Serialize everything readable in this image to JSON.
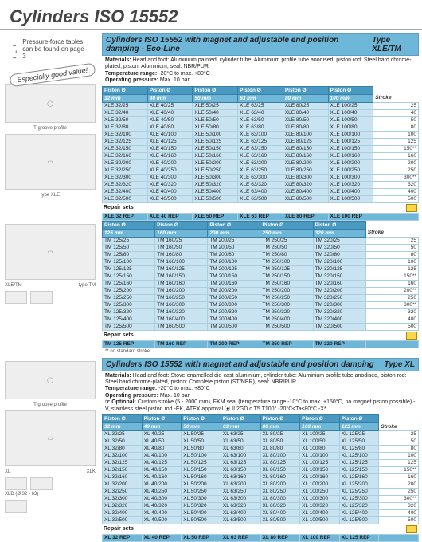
{
  "page": {
    "title": "Cylinders ISO 15552",
    "note": "Pressure-force tables can be found on page 3",
    "badge": "Especially good value!"
  },
  "section1": {
    "header_title": "Cylinders ISO 15552 with magnet and adjustable end position damping - Eco-Line",
    "header_type": "Type XLE/TM",
    "materials": "Head and foot: Aluminium painted, cylinder tube: Aluminium profile tube anodised, piston rod: Steel hard chrome-plated, piston: Aluminium, seal: NBR/PUR",
    "temp_range": "-20°C to max. +80°C",
    "op_pressure": "Max. 10 bar",
    "piston_label": "Piston Ø",
    "stroke_label": "Stroke",
    "repair_label": "Repair sets",
    "img1_cap": "T-groove profile",
    "img2_cap": "type XLE",
    "tableA": {
      "sizes": [
        "32 mm",
        "40 mm",
        "50 mm",
        "63 mm",
        "80 mm",
        "100 mm"
      ],
      "rows": [
        {
          "c": [
            "XLE 32/25",
            "XLE 40/25",
            "XLE 50/25",
            "XLE 63/25",
            "XLE 80/25",
            "XLE 100/25"
          ],
          "s": "25"
        },
        {
          "c": [
            "XLE 32/40",
            "XLE 40/40",
            "XLE 50/40",
            "XLE 63/40",
            "XLE 80/40",
            "XLE 100/40"
          ],
          "s": "40"
        },
        {
          "c": [
            "XLE 32/50",
            "XLE 40/50",
            "XLE 50/50",
            "XLE 63/50",
            "XLE 80/50",
            "XLE 100/50"
          ],
          "s": "50"
        },
        {
          "c": [
            "XLE 32/80",
            "XLE 40/80",
            "XLE 50/80",
            "XLE 63/80",
            "XLE 80/80",
            "XLE 100/80"
          ],
          "s": "80"
        },
        {
          "c": [
            "XLE 32/100",
            "XLE 40/100",
            "XLE 50/100",
            "XLE 63/100",
            "XLE 80/100",
            "XLE 100/100"
          ],
          "s": "100"
        },
        {
          "c": [
            "XLE 32/125",
            "XLE 40/125",
            "XLE 50/125",
            "XLE 63/125",
            "XLE 80/125",
            "XLE 100/125"
          ],
          "s": "125"
        },
        {
          "c": [
            "XLE 32/150",
            "XLE 40/150",
            "XLE 50/150",
            "XLE 63/150",
            "XLE 80/150",
            "XLE 100/150"
          ],
          "s": "150**"
        },
        {
          "c": [
            "XLE 32/160",
            "XLE 40/160",
            "XLE 50/160",
            "XLE 63/160",
            "XLE 80/160",
            "XLE 100/160"
          ],
          "s": "160"
        },
        {
          "c": [
            "XLE 32/200",
            "XLE 40/200",
            "XLE 50/200",
            "XLE 63/200",
            "XLE 80/200",
            "XLE 100/200"
          ],
          "s": "200"
        },
        {
          "c": [
            "XLE 32/250",
            "XLE 40/250",
            "XLE 50/250",
            "XLE 63/250",
            "XLE 80/250",
            "XLE 100/250"
          ],
          "s": "250"
        },
        {
          "c": [
            "XLE 32/300",
            "XLE 40/300",
            "XLE 50/300",
            "XLE 63/300",
            "XLE 80/300",
            "XLE 100/300"
          ],
          "s": "300**"
        },
        {
          "c": [
            "XLE 32/320",
            "XLE 40/320",
            "XLE 50/320",
            "XLE 63/320",
            "XLE 80/320",
            "XLE 100/320"
          ],
          "s": "320"
        },
        {
          "c": [
            "XLE 32/400",
            "XLE 40/400",
            "XLE 50/400",
            "XLE 63/400",
            "XLE 80/400",
            "XLE 100/400"
          ],
          "s": "400"
        },
        {
          "c": [
            "XLE 32/500",
            "XLE 40/500",
            "XLE 50/500",
            "XLE 63/500",
            "XLE 80/500",
            "XLE 100/500"
          ],
          "s": "500"
        }
      ],
      "repair": [
        "XLE 32 REP",
        "XLE 40 REP",
        "XLE 50 REP",
        "XLE 63 REP",
        "XLE 80 REP",
        "XLE 100 REP"
      ]
    },
    "tableB": {
      "sizes": [
        "125 mm",
        "160 mm",
        "200 mm",
        "250 mm",
        "320 mm"
      ],
      "img_cap_left": "XLE/TM",
      "img_cap_right": "type TM",
      "rows": [
        {
          "c": [
            "TM 125/25",
            "TM 160/25",
            "TM 200/25",
            "TM 250/25",
            "TM 320/25"
          ],
          "s": "25"
        },
        {
          "c": [
            "TM 125/50",
            "TM 160/50",
            "TM 200/50",
            "TM 250/50",
            "TM 320/50"
          ],
          "s": "50"
        },
        {
          "c": [
            "TM 125/80",
            "TM 160/80",
            "TM 200/80",
            "TM 250/80",
            "TM 320/80"
          ],
          "s": "80"
        },
        {
          "c": [
            "TM 125/100",
            "TM 160/100",
            "TM 200/100",
            "TM 250/100",
            "TM 320/100"
          ],
          "s": "100"
        },
        {
          "c": [
            "TM 125/125",
            "TM 160/125",
            "TM 200/125",
            "TM 250/125",
            "TM 320/125"
          ],
          "s": "125"
        },
        {
          "c": [
            "TM 125/150",
            "TM 160/150",
            "TM 200/150",
            "TM 250/150",
            "TM 320/150"
          ],
          "s": "150**"
        },
        {
          "c": [
            "TM 125/160",
            "TM 160/160",
            "TM 200/160",
            "TM 250/160",
            "TM 320/160"
          ],
          "s": "160"
        },
        {
          "c": [
            "TM 125/200",
            "TM 160/200",
            "TM 200/200",
            "TM 250/200",
            "TM 320/200"
          ],
          "s": "200**"
        },
        {
          "c": [
            "TM 125/250",
            "TM 160/250",
            "TM 200/250",
            "TM 250/250",
            "TM 320/250"
          ],
          "s": "250"
        },
        {
          "c": [
            "TM 125/300",
            "TM 160/300",
            "TM 200/300",
            "TM 250/300",
            "TM 320/300"
          ],
          "s": "300**"
        },
        {
          "c": [
            "TM 125/320",
            "TM 160/320",
            "TM 200/320",
            "TM 250/320",
            "TM 320/320"
          ],
          "s": "320"
        },
        {
          "c": [
            "TM 125/400",
            "TM 160/400",
            "TM 200/400",
            "TM 250/400",
            "TM 320/400"
          ],
          "s": "400"
        },
        {
          "c": [
            "TM 125/500",
            "TM 160/500",
            "TM 200/500",
            "TM 250/500",
            "TM 320/500"
          ],
          "s": "500"
        }
      ],
      "repair": [
        "TM 125 REP",
        "TM 160 REP",
        "TM 200 REP",
        "TM 250 REP",
        "TM 320 REP"
      ]
    },
    "footnote": "** no standard stroke"
  },
  "section2": {
    "header_title": "Cylinders ISO 15552 with magnet and adjustable end position damping",
    "header_type": "Type XL",
    "materials": "Head and foot: Stove-enamelled die-cast aluminium, cylinder tube: Aluminium profile tube anodised, piston rod: Steel hard chrome-plated, piston: Complete piston (ST/NBR), seal: NBR/PUR",
    "temp_range": "-20°C to max. +80°C",
    "op_pressure": "Max. 10 bar",
    "optional": "Custom stroke (5 - 2000 mm), FKM seal (temperature range -10°C to max. +150°C, no magnet piston possible) -V, stainless steel piston rod -EK, ATEX approval ⦿ II 2GD c T5 T100° -20°C≤Ta≤80°C -X*",
    "piston_label": "Piston Ø",
    "stroke_label": "Stroke",
    "repair_label": "Repair sets",
    "img1_cap": "T-groove profile",
    "img2_cap_left": "XL",
    "img2_cap_mid": "XLK",
    "img2_cap_bottom": "XLD (Ø 32 - 63)",
    "table": {
      "sizes": [
        "32 mm",
        "40 mm",
        "50 mm",
        "63 mm",
        "80 mm",
        "100 mm",
        "125 mm"
      ],
      "rows": [
        {
          "c": [
            "XL 32/25",
            "XL 40/25",
            "XL 50/25",
            "XL 63/25",
            "XL 80/25",
            "XL 100/25",
            "XL 125/25"
          ],
          "s": "25"
        },
        {
          "c": [
            "XL 32/50",
            "XL 40/50",
            "XL 50/50",
            "XL 63/50",
            "XL 80/50",
            "XL 100/50",
            "XL 125/50"
          ],
          "s": "50"
        },
        {
          "c": [
            "XL 32/80",
            "XL 40/80",
            "XL 50/80",
            "XL 63/80",
            "XL 80/80",
            "XL 100/80",
            "XL 125/80"
          ],
          "s": "80"
        },
        {
          "c": [
            "XL 32/100",
            "XL 40/100",
            "XL 50/100",
            "XL 63/100",
            "XL 80/100",
            "XL 100/100",
            "XL 125/100"
          ],
          "s": "100"
        },
        {
          "c": [
            "XL 32/125",
            "XL 40/125",
            "XL 50/125",
            "XL 63/125",
            "XL 80/125",
            "XL 100/125",
            "XL 125/125"
          ],
          "s": "125"
        },
        {
          "c": [
            "XL 32/150",
            "XL 40/150",
            "XL 50/150",
            "XL 63/150",
            "XL 80/150",
            "XL 100/150",
            "XL 125/150"
          ],
          "s": "150**"
        },
        {
          "c": [
            "XL 32/160",
            "XL 40/160",
            "XL 50/160",
            "XL 63/160",
            "XL 80/160",
            "XL 100/160",
            "XL 125/160"
          ],
          "s": "160"
        },
        {
          "c": [
            "XL 32/200",
            "XL 40/200",
            "XL 50/200",
            "XL 63/200",
            "XL 80/200",
            "XL 100/200",
            "XL 125/200"
          ],
          "s": "200"
        },
        {
          "c": [
            "XL 32/250",
            "XL 40/250",
            "XL 50/250",
            "XL 63/250",
            "XL 80/250",
            "XL 100/250",
            "XL 125/250"
          ],
          "s": "250"
        },
        {
          "c": [
            "XL 32/300",
            "XL 40/300",
            "XL 50/300",
            "XL 63/300",
            "XL 80/300",
            "XL 100/300",
            "XL 125/300"
          ],
          "s": "300**"
        },
        {
          "c": [
            "XL 32/320",
            "XL 40/320",
            "XL 50/320",
            "XL 63/320",
            "XL 80/320",
            "XL 100/320",
            "XL 125/320"
          ],
          "s": "320"
        },
        {
          "c": [
            "XL 32/400",
            "XL 40/400",
            "XL 50/400",
            "XL 63/400",
            "XL 80/400",
            "XL 100/400",
            "XL 125/400"
          ],
          "s": "400"
        },
        {
          "c": [
            "XL 32/500",
            "XL 40/500",
            "XL 50/500",
            "XL 63/500",
            "XL 80/500",
            "XL 100/500",
            "XL 125/500"
          ],
          "s": "500"
        }
      ],
      "repair": [
        "XL 32 REP",
        "XL 40 REP",
        "XL 50 REP",
        "XL 63 REP",
        "XL 80 REP",
        "XL 100 REP",
        "XL 125 REP"
      ]
    }
  },
  "labels": {
    "materials": "Materials:",
    "temp": "Temperature range:",
    "pressure": "Operating pressure:",
    "optional": "☞ Optional:"
  }
}
